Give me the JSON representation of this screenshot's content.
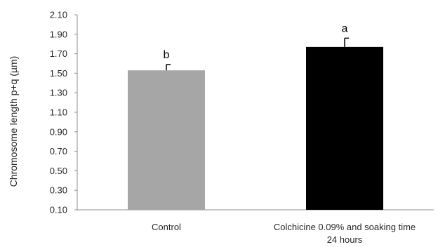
{
  "chart_data": {
    "type": "bar",
    "ylabel": "Chromosome length  p+q (µm)",
    "xlabel": "",
    "ylim": [
      0.1,
      2.1
    ],
    "yticks": [
      "0.10",
      "0.30",
      "0.50",
      "0.70",
      "0.90",
      "1.10",
      "1.30",
      "1.50",
      "1.70",
      "1.90",
      "2.10"
    ],
    "grid": false,
    "categories": [
      [
        "Control"
      ],
      [
        "Colchicine 0.09% and soaking time",
        "24 hours"
      ]
    ],
    "values": [
      1.53,
      1.77
    ],
    "errors": [
      0.06,
      0.09
    ],
    "significance": [
      "b",
      "a"
    ],
    "colors": [
      "#a6a6a6",
      "#000000"
    ]
  }
}
